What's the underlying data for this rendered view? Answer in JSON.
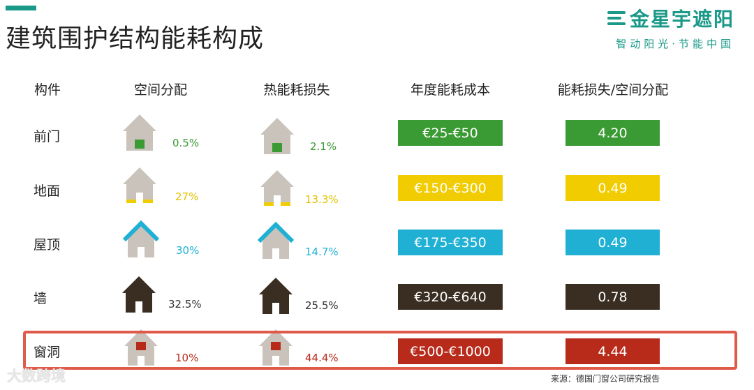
{
  "title": "建筑围护结构能耗构成",
  "brand": {
    "name": "金星宇遮阳",
    "tagline": "智动阳光·节能中国",
    "color": "#1a9988"
  },
  "headers": [
    "构件",
    "空间分配",
    "热能耗损失",
    "年度能耗成本",
    "能耗损失/空间分配"
  ],
  "rows": [
    {
      "component": "前门",
      "space_pct": "0.5%",
      "heat_loss_pct": "2.1%",
      "annual_cost": "€25-€50",
      "ratio": "4.20",
      "color": "#3a9a33",
      "icon": "house-door-icon"
    },
    {
      "component": "地面",
      "space_pct": "27%",
      "heat_loss_pct": "13.3%",
      "annual_cost": "€150-€300",
      "ratio": "0.49",
      "color": "#f0cc00",
      "icon": "house-floor-icon"
    },
    {
      "component": "屋顶",
      "space_pct": "30%",
      "heat_loss_pct": "14.7%",
      "annual_cost": "€175-€350",
      "ratio": "0.49",
      "color": "#1fb0d4",
      "icon": "house-roof-icon"
    },
    {
      "component": "墙",
      "space_pct": "32.5%",
      "heat_loss_pct": "25.5%",
      "annual_cost": "€320-€640",
      "ratio": "0.78",
      "color": "#3a2e22",
      "icon": "house-wall-icon"
    },
    {
      "component": "窗洞",
      "space_pct": "10%",
      "heat_loss_pct": "44.4%",
      "annual_cost": "€500-€1000",
      "ratio": "4.44",
      "color": "#b82a1a",
      "icon": "house-window-icon"
    }
  ],
  "source": "来源：德国门窗公司研究报告",
  "watermark": "大数跨境"
}
